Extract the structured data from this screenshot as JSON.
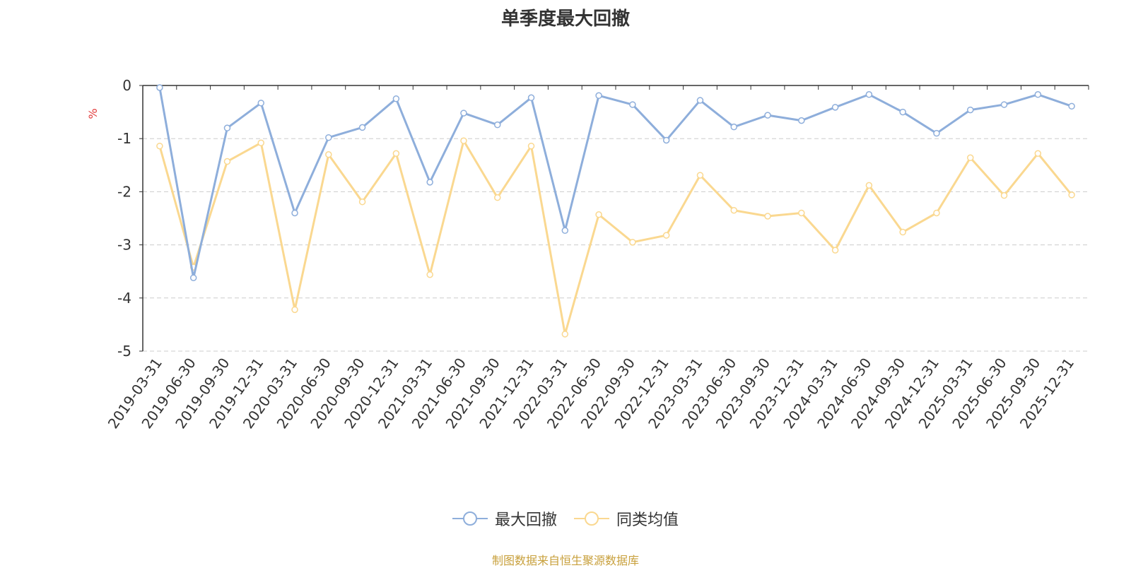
{
  "source_note": "制图数据来自恒生聚源数据库",
  "colors": {
    "series1": "#8eaedb",
    "series2": "#fad890",
    "ylabel": "#e23c3c",
    "grid": "#cccccc",
    "axis": "#333333",
    "source": "#c8a03c"
  },
  "chart_data": {
    "type": "line",
    "title": "单季度最大回撤",
    "ylabel": "%",
    "ylim": [
      -5,
      0
    ],
    "yticks": [
      0,
      -1,
      -2,
      -3,
      -4,
      -5
    ],
    "grid": "horizontal dashed",
    "legend_position": "bottom-center",
    "categories": [
      "2019-03-31",
      "2019-06-30",
      "2019-09-30",
      "2019-12-31",
      "2020-03-31",
      "2020-06-30",
      "2020-09-30",
      "2020-12-31",
      "2021-03-31",
      "2021-06-30",
      "2021-09-30",
      "2021-12-31",
      "2022-03-31",
      "2022-06-30",
      "2022-09-30",
      "2022-12-31",
      "2023-03-31",
      "2023-06-30",
      "2023-09-30",
      "2023-12-31",
      "2024-03-31",
      "2024-06-30",
      "2024-09-30",
      "2024-12-31",
      "2025-03-31",
      "2025-06-30",
      "2025-09-30",
      "2025-12-31"
    ],
    "series": [
      {
        "name": "最大回撤",
        "values": [
          -0.04,
          -3.62,
          -0.8,
          -0.33,
          -2.4,
          -0.98,
          -0.79,
          -0.25,
          -1.82,
          -0.52,
          -0.74,
          -0.23,
          -2.73,
          -0.19,
          -0.36,
          -1.03,
          -0.28,
          -0.78,
          -0.56,
          -0.66,
          -0.41,
          -0.17,
          -0.5,
          -0.9,
          -0.46,
          -0.36,
          -0.17,
          -0.39
        ]
      },
      {
        "name": "同类均值",
        "values": [
          -1.14,
          -3.42,
          -1.43,
          -1.08,
          -4.22,
          -1.3,
          -2.19,
          -1.28,
          -3.56,
          -1.04,
          -2.11,
          -1.14,
          -4.68,
          -2.43,
          -2.95,
          -2.82,
          -1.69,
          -2.35,
          -2.46,
          -2.4,
          -3.1,
          -1.88,
          -2.76,
          -2.4,
          -1.36,
          -2.07,
          -1.28,
          -2.06
        ]
      }
    ]
  }
}
